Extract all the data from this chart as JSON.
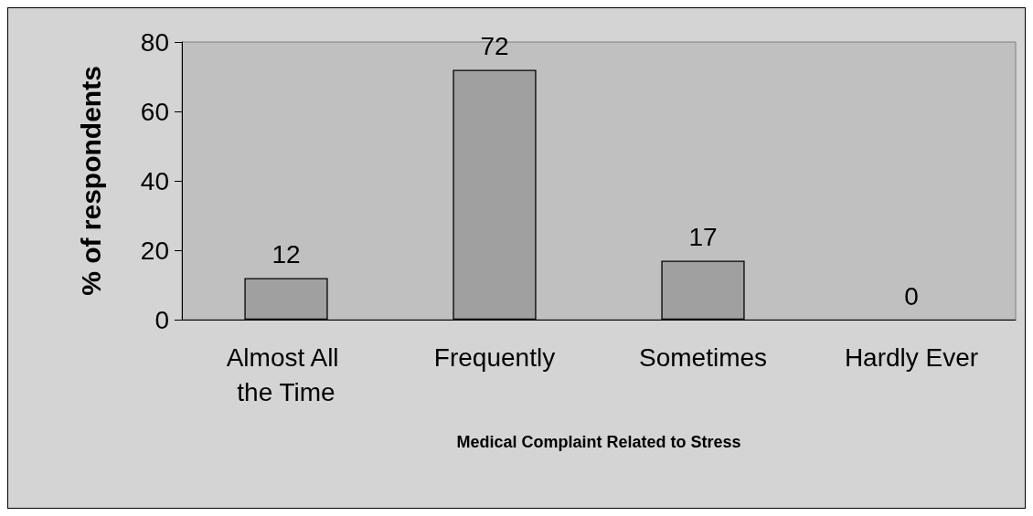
{
  "chart_data": {
    "type": "bar",
    "xlabel": "Medical Complaint Related to Stress",
    "ylabel": "% of respondents",
    "categories": [
      "Almost All the Time",
      "Frequently",
      "Sometimes",
      "Hardly Ever"
    ],
    "values": [
      12,
      72,
      17,
      0
    ],
    "color": "#a0a0a0",
    "ylim": [
      0,
      80
    ],
    "yticks": [
      0,
      20,
      40,
      60,
      80
    ],
    "grid": false,
    "data_labels": true
  }
}
